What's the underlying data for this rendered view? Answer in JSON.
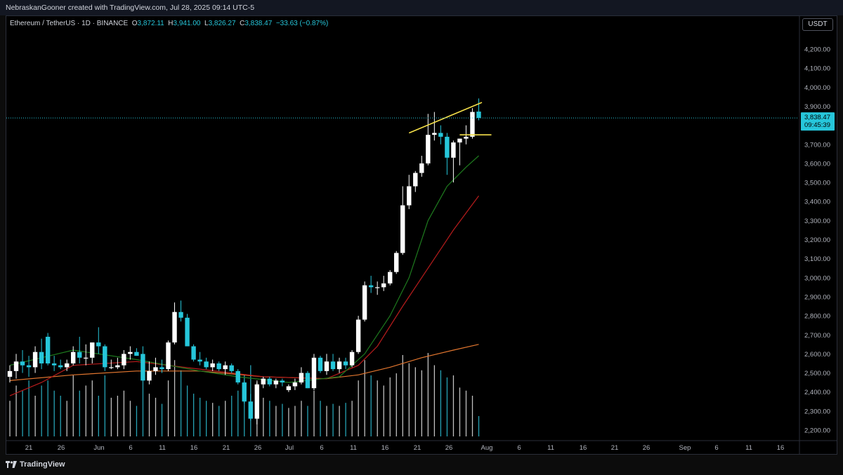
{
  "header": {
    "credit": "NebraskanGooner created with TradingView.com, Jul 28, 2025 09:14 UTC-5"
  },
  "legend": {
    "symbol": "Ethereum / TetherUS · 1D · BINANCE",
    "o_label": "O",
    "o": "3,872.11",
    "h_label": "H",
    "h": "3,941.00",
    "l_label": "L",
    "l": "3,826.27",
    "c_label": "C",
    "c": "3,838.47",
    "change": "−33.63 (−0.87%)"
  },
  "toolbar": {
    "currency": "USDT"
  },
  "footer": {
    "brand": "TradingView"
  },
  "colors": {
    "up": "#ffffff",
    "down": "#26c6da",
    "ema_fast": "#1e7a1e",
    "ema_mid": "#b71c1c",
    "ema_slow": "#e2762f",
    "trendline": "#f5e04a",
    "last_price": "#26c6da"
  },
  "chart_data": {
    "type": "candlestick",
    "title": "",
    "y_ticks": [
      "4,200.00",
      "4,100.00",
      "4,000.00",
      "3,900.00",
      "3,800.00",
      "3,700.00",
      "3,600.00",
      "3,500.00",
      "3,400.00",
      "3,300.00",
      "3,200.00",
      "3,100.00",
      "3,000.00",
      "2,900.00",
      "2,800.00",
      "2,700.00",
      "2,600.00",
      "2,500.00",
      "2,400.00",
      "2,300.00",
      "2,200.00"
    ],
    "y_range": [
      2150,
      4280
    ],
    "x_ticks": [
      "21",
      "26",
      "Jun",
      "6",
      "11",
      "16",
      "21",
      "26",
      "Jul",
      "6",
      "11",
      "16",
      "21",
      "26",
      "Aug",
      "6",
      "11",
      "16",
      "21",
      "26",
      "Sep",
      "6",
      "11",
      "16"
    ],
    "last_price": {
      "value": "3,838.47",
      "countdown": "09:45:39"
    },
    "candles": [
      {
        "o": 2480,
        "h": 2540,
        "l": 2450,
        "c": 2510
      },
      {
        "o": 2510,
        "h": 2600,
        "l": 2470,
        "c": 2560
      },
      {
        "o": 2560,
        "h": 2620,
        "l": 2500,
        "c": 2540
      },
      {
        "o": 2540,
        "h": 2590,
        "l": 2480,
        "c": 2530
      },
      {
        "o": 2530,
        "h": 2640,
        "l": 2500,
        "c": 2610
      },
      {
        "o": 2610,
        "h": 2680,
        "l": 2520,
        "c": 2550
      },
      {
        "o": 2690,
        "h": 2710,
        "l": 2540,
        "c": 2550
      },
      {
        "o": 2550,
        "h": 2590,
        "l": 2510,
        "c": 2540
      },
      {
        "o": 2540,
        "h": 2570,
        "l": 2520,
        "c": 2530
      },
      {
        "o": 2530,
        "h": 2570,
        "l": 2510,
        "c": 2550
      },
      {
        "o": 2550,
        "h": 2640,
        "l": 2540,
        "c": 2610
      },
      {
        "o": 2610,
        "h": 2690,
        "l": 2550,
        "c": 2580
      },
      {
        "o": 2580,
        "h": 2650,
        "l": 2540,
        "c": 2580
      },
      {
        "o": 2580,
        "h": 2650,
        "l": 2550,
        "c": 2660
      },
      {
        "o": 2660,
        "h": 2740,
        "l": 2600,
        "c": 2640
      },
      {
        "o": 2640,
        "h": 2650,
        "l": 2510,
        "c": 2530
      },
      {
        "o": 2530,
        "h": 2570,
        "l": 2520,
        "c": 2530
      },
      {
        "o": 2530,
        "h": 2580,
        "l": 2520,
        "c": 2540
      },
      {
        "o": 2540,
        "h": 2620,
        "l": 2520,
        "c": 2600
      },
      {
        "o": 2600,
        "h": 2640,
        "l": 2570,
        "c": 2610
      },
      {
        "o": 2610,
        "h": 2630,
        "l": 2590,
        "c": 2590
      },
      {
        "o": 2600,
        "h": 2640,
        "l": 2460,
        "c": 2460
      },
      {
        "o": 2460,
        "h": 2560,
        "l": 2440,
        "c": 2510
      },
      {
        "o": 2510,
        "h": 2580,
        "l": 2490,
        "c": 2530
      },
      {
        "o": 2530,
        "h": 2570,
        "l": 2500,
        "c": 2520
      },
      {
        "o": 2520,
        "h": 2670,
        "l": 2510,
        "c": 2660
      },
      {
        "o": 2660,
        "h": 2870,
        "l": 2650,
        "c": 2820
      },
      {
        "o": 2820,
        "h": 2880,
        "l": 2770,
        "c": 2790
      },
      {
        "o": 2790,
        "h": 2810,
        "l": 2640,
        "c": 2640
      },
      {
        "o": 2640,
        "h": 2650,
        "l": 2560,
        "c": 2570
      },
      {
        "o": 2570,
        "h": 2610,
        "l": 2540,
        "c": 2560
      },
      {
        "o": 2560,
        "h": 2580,
        "l": 2520,
        "c": 2530
      },
      {
        "o": 2530,
        "h": 2570,
        "l": 2510,
        "c": 2550
      },
      {
        "o": 2550,
        "h": 2560,
        "l": 2510,
        "c": 2520
      },
      {
        "o": 2520,
        "h": 2560,
        "l": 2490,
        "c": 2540
      },
      {
        "o": 2540,
        "h": 2550,
        "l": 2500,
        "c": 2510
      },
      {
        "o": 2510,
        "h": 2520,
        "l": 2440,
        "c": 2450
      },
      {
        "o": 2450,
        "h": 2460,
        "l": 2340,
        "c": 2350
      },
      {
        "o": 2350,
        "h": 2390,
        "l": 2250,
        "c": 2260
      },
      {
        "o": 2260,
        "h": 2450,
        "l": 2230,
        "c": 2440
      },
      {
        "o": 2440,
        "h": 2480,
        "l": 2420,
        "c": 2470
      },
      {
        "o": 2470,
        "h": 2480,
        "l": 2430,
        "c": 2440
      },
      {
        "o": 2440,
        "h": 2470,
        "l": 2420,
        "c": 2460
      },
      {
        "o": 2460,
        "h": 2470,
        "l": 2430,
        "c": 2450
      },
      {
        "o": 2410,
        "h": 2440,
        "l": 2400,
        "c": 2430
      },
      {
        "o": 2430,
        "h": 2470,
        "l": 2410,
        "c": 2450
      },
      {
        "o": 2450,
        "h": 2530,
        "l": 2440,
        "c": 2500
      },
      {
        "o": 2500,
        "h": 2510,
        "l": 2420,
        "c": 2420
      },
      {
        "o": 2420,
        "h": 2600,
        "l": 2410,
        "c": 2580
      },
      {
        "o": 2580,
        "h": 2590,
        "l": 2500,
        "c": 2510
      },
      {
        "o": 2510,
        "h": 2600,
        "l": 2490,
        "c": 2560
      },
      {
        "o": 2560,
        "h": 2600,
        "l": 2510,
        "c": 2520
      },
      {
        "o": 2520,
        "h": 2580,
        "l": 2500,
        "c": 2560
      },
      {
        "o": 2560,
        "h": 2580,
        "l": 2520,
        "c": 2540
      },
      {
        "o": 2540,
        "h": 2620,
        "l": 2530,
        "c": 2610
      },
      {
        "o": 2610,
        "h": 2800,
        "l": 2600,
        "c": 2780
      },
      {
        "o": 2780,
        "h": 2980,
        "l": 2770,
        "c": 2960
      },
      {
        "o": 2960,
        "h": 3010,
        "l": 2920,
        "c": 2950
      },
      {
        "o": 2950,
        "h": 2980,
        "l": 2910,
        "c": 2950
      },
      {
        "o": 2950,
        "h": 3010,
        "l": 2930,
        "c": 2970
      },
      {
        "o": 2970,
        "h": 3040,
        "l": 2960,
        "c": 3030
      },
      {
        "o": 3030,
        "h": 3140,
        "l": 3020,
        "c": 3130
      },
      {
        "o": 3130,
        "h": 3480,
        "l": 3120,
        "c": 3380
      },
      {
        "o": 3380,
        "h": 3540,
        "l": 3360,
        "c": 3480
      },
      {
        "o": 3480,
        "h": 3560,
        "l": 3450,
        "c": 3550
      },
      {
        "o": 3550,
        "h": 3640,
        "l": 3530,
        "c": 3600
      },
      {
        "o": 3600,
        "h": 3860,
        "l": 3590,
        "c": 3750
      },
      {
        "o": 3750,
        "h": 3870,
        "l": 3720,
        "c": 3760
      },
      {
        "o": 3760,
        "h": 3800,
        "l": 3700,
        "c": 3740
      },
      {
        "o": 3740,
        "h": 3760,
        "l": 3540,
        "c": 3630
      },
      {
        "o": 3630,
        "h": 3720,
        "l": 3500,
        "c": 3710
      },
      {
        "o": 3710,
        "h": 3730,
        "l": 3590,
        "c": 3730
      },
      {
        "o": 3730,
        "h": 3800,
        "l": 3700,
        "c": 3740
      },
      {
        "o": 3740,
        "h": 3890,
        "l": 3730,
        "c": 3870
      },
      {
        "o": 3872.11,
        "h": 3941,
        "l": 3826.27,
        "c": 3838.47
      }
    ],
    "ema_fast": [
      [
        0,
        2540
      ],
      [
        10,
        2620
      ],
      [
        20,
        2570
      ],
      [
        30,
        2510
      ],
      [
        36,
        2480
      ],
      [
        44,
        2450
      ],
      [
        52,
        2480
      ],
      [
        56,
        2600
      ],
      [
        60,
        2800
      ],
      [
        63,
        3000
      ],
      [
        66,
        3300
      ],
      [
        69,
        3480
      ],
      [
        72,
        3580
      ],
      [
        74,
        3640
      ]
    ],
    "ema_mid": [
      [
        0,
        2380
      ],
      [
        5,
        2450
      ],
      [
        10,
        2540
      ],
      [
        20,
        2560
      ],
      [
        30,
        2520
      ],
      [
        40,
        2480
      ],
      [
        50,
        2470
      ],
      [
        55,
        2540
      ],
      [
        58,
        2640
      ],
      [
        62,
        2850
      ],
      [
        66,
        3050
      ],
      [
        70,
        3250
      ],
      [
        74,
        3430
      ]
    ],
    "ema_slow": [
      [
        0,
        2460
      ],
      [
        10,
        2490
      ],
      [
        20,
        2510
      ],
      [
        30,
        2510
      ],
      [
        40,
        2480
      ],
      [
        50,
        2470
      ],
      [
        55,
        2490
      ],
      [
        60,
        2530
      ],
      [
        65,
        2580
      ],
      [
        70,
        2620
      ],
      [
        74,
        2650
      ]
    ],
    "trendlines": [
      {
        "from": [
          63,
          3760
        ],
        "to": [
          74.5,
          3920
        ]
      },
      {
        "from": [
          71,
          3750
        ],
        "to": [
          76,
          3750
        ]
      }
    ],
    "volume_note": "volume bars shown as relative heights (0-1 scale)",
    "volume": [
      0.35,
      0.5,
      0.45,
      0.55,
      0.4,
      0.5,
      0.55,
      0.45,
      0.4,
      0.35,
      0.6,
      0.45,
      0.5,
      0.55,
      0.4,
      0.6,
      0.38,
      0.4,
      0.45,
      0.35,
      0.3,
      0.6,
      0.42,
      0.38,
      0.32,
      0.55,
      0.75,
      0.65,
      0.5,
      0.42,
      0.38,
      0.35,
      0.33,
      0.3,
      0.35,
      0.4,
      0.45,
      0.6,
      0.7,
      0.55,
      0.38,
      0.35,
      0.3,
      0.32,
      0.28,
      0.3,
      0.35,
      0.3,
      0.45,
      0.35,
      0.3,
      0.32,
      0.3,
      0.33,
      0.35,
      0.55,
      0.75,
      0.6,
      0.55,
      0.5,
      0.58,
      0.62,
      0.8,
      0.72,
      0.68,
      0.65,
      0.82,
      0.7,
      0.65,
      0.58,
      0.6,
      0.48,
      0.45,
      0.4,
      0.2
    ]
  }
}
